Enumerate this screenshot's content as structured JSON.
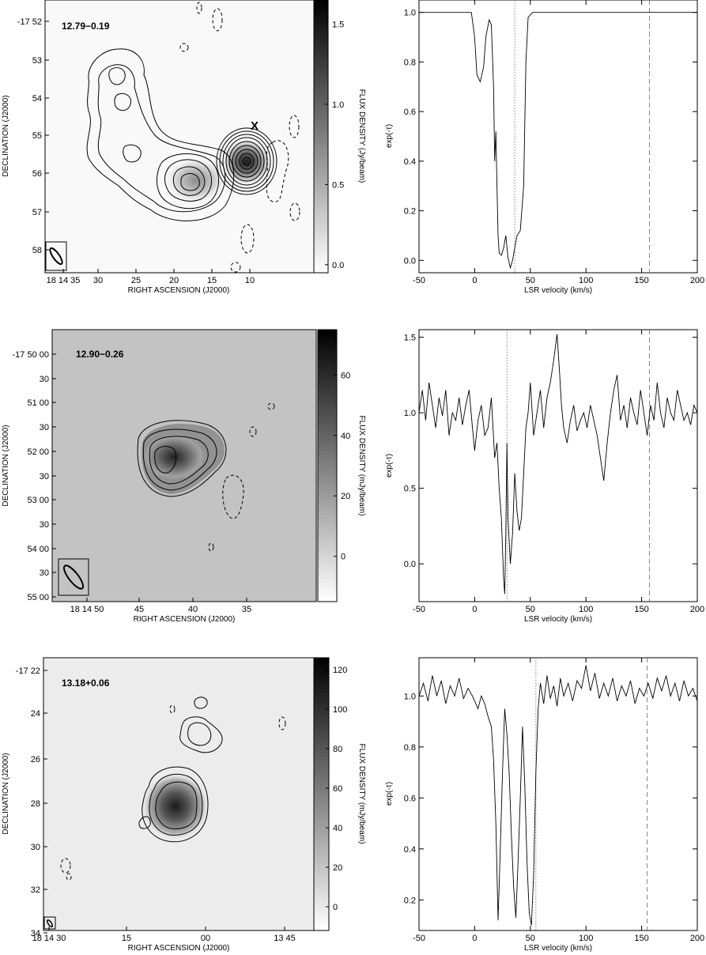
{
  "rows": [
    {
      "map": {
        "source": "12.79−0.19",
        "xlabel": "RIGHT ASCENSION (J2000)",
        "ylabel": "DECLINATION (J2000)",
        "cbar_label": "FLUX DENSITY (Jy/beam)",
        "cbar_ticks": [
          "1.5",
          "1.0",
          "0.5",
          "0.0"
        ],
        "cbar_ticks_num": [
          1.5,
          1.0,
          0.5,
          0.0
        ],
        "cbar_range": [
          -0.05,
          1.65
        ],
        "x_ticks": [
          "18 14 35",
          "30",
          "25",
          "20",
          "15",
          "10"
        ],
        "y_ticks": [
          "-17 52",
          "53",
          "54",
          "55",
          "56",
          "57",
          "58"
        ],
        "marker": "X"
      },
      "spectrum": {
        "type": "line",
        "xlabel": "LSR velocity (km/s)",
        "ylabel": "exp(-τ)",
        "x_ticks": [
          "-50",
          "0",
          "50",
          "100",
          "150",
          "200"
        ],
        "x_ticks_num": [
          -50,
          0,
          50,
          100,
          150,
          200
        ],
        "y_ticks": [
          "0.0",
          "0.2",
          "0.4",
          "0.6",
          "0.8",
          "1.0"
        ],
        "y_ticks_num": [
          0.0,
          0.2,
          0.4,
          0.6,
          0.8,
          1.0
        ],
        "xlim": [
          -50,
          200
        ],
        "ylim": [
          -0.05,
          1.05
        ],
        "dotted_line": 36,
        "dashed_line": 157,
        "points": [
          [
            -50,
            1.0
          ],
          [
            -40,
            1.0
          ],
          [
            -30,
            1.0
          ],
          [
            -20,
            1.0
          ],
          [
            -10,
            1.0
          ],
          [
            -3,
            1.0
          ],
          [
            0,
            0.9
          ],
          [
            2,
            0.75
          ],
          [
            5,
            0.72
          ],
          [
            8,
            0.78
          ],
          [
            10,
            0.9
          ],
          [
            13,
            0.97
          ],
          [
            15,
            0.95
          ],
          [
            17,
            0.7
          ],
          [
            18,
            0.4
          ],
          [
            19,
            0.52
          ],
          [
            20,
            0.3
          ],
          [
            21,
            0.1
          ],
          [
            22,
            0.03
          ],
          [
            24,
            0.02
          ],
          [
            26,
            0.05
          ],
          [
            28,
            0.1
          ],
          [
            30,
            0.01
          ],
          [
            32,
            -0.03
          ],
          [
            34,
            0.0
          ],
          [
            36,
            0.05
          ],
          [
            38,
            0.1
          ],
          [
            41,
            0.12
          ],
          [
            44,
            0.3
          ],
          [
            46,
            0.8
          ],
          [
            48,
            0.98
          ],
          [
            52,
            1.0
          ],
          [
            60,
            1.0
          ],
          [
            70,
            1.0
          ],
          [
            80,
            1.0
          ],
          [
            90,
            1.0
          ],
          [
            100,
            1.0
          ],
          [
            110,
            1.0
          ],
          [
            120,
            1.0
          ],
          [
            130,
            1.0
          ],
          [
            140,
            1.0
          ],
          [
            150,
            1.0
          ],
          [
            160,
            1.0
          ],
          [
            170,
            1.0
          ],
          [
            180,
            1.0
          ],
          [
            190,
            1.0
          ],
          [
            200,
            1.0
          ]
        ]
      }
    },
    {
      "map": {
        "source": "12.90−0.26",
        "xlabel": "RIGHT ASCENSION (J2000)",
        "ylabel": "DECLINATION (J2000)",
        "cbar_label": "FLUX DENSITY (mJy/beam)",
        "cbar_ticks": [
          "60",
          "40",
          "20",
          "0"
        ],
        "cbar_ticks_num": [
          60,
          40,
          20,
          0
        ],
        "cbar_range": [
          -15,
          75
        ],
        "x_ticks": [
          "18 14 50",
          "45",
          "40",
          "35"
        ],
        "y_ticks": [
          "-17 50 00",
          "30",
          "51 00",
          "30",
          "52 00",
          "30",
          "53 00",
          "30",
          "54 00",
          "30",
          "55 00"
        ]
      },
      "spectrum": {
        "type": "line",
        "xlabel": "LSR velocity (km/s)",
        "ylabel": "exp(-τ)",
        "x_ticks": [
          "-50",
          "0",
          "50",
          "100",
          "150",
          "200"
        ],
        "x_ticks_num": [
          -50,
          0,
          50,
          100,
          150,
          200
        ],
        "y_ticks": [
          "0.0",
          "0.5",
          "1.0",
          "1.5"
        ],
        "y_ticks_num": [
          0.0,
          0.5,
          1.0,
          1.5
        ],
        "xlim": [
          -50,
          200
        ],
        "ylim": [
          -0.25,
          1.55
        ],
        "dotted_line": 29,
        "dashed_line": 157,
        "points": [
          [
            -50,
            1.0
          ],
          [
            -47,
            1.15
          ],
          [
            -44,
            0.95
          ],
          [
            -41,
            1.2
          ],
          [
            -38,
            1.05
          ],
          [
            -35,
            0.9
          ],
          [
            -32,
            1.1
          ],
          [
            -29,
            0.98
          ],
          [
            -26,
            1.15
          ],
          [
            -23,
            0.85
          ],
          [
            -20,
            1.0
          ],
          [
            -17,
            0.95
          ],
          [
            -14,
            1.1
          ],
          [
            -11,
            0.92
          ],
          [
            -8,
            1.05
          ],
          [
            -5,
            1.15
          ],
          [
            -2,
            0.9
          ],
          [
            0,
            0.75
          ],
          [
            3,
            0.95
          ],
          [
            6,
            1.05
          ],
          [
            9,
            0.85
          ],
          [
            12,
            0.9
          ],
          [
            15,
            1.1
          ],
          [
            18,
            0.7
          ],
          [
            20,
            0.8
          ],
          [
            22,
            0.5
          ],
          [
            24,
            0.3
          ],
          [
            26,
            -0.1
          ],
          [
            27,
            -0.2
          ],
          [
            28,
            0.2
          ],
          [
            29,
            0.8
          ],
          [
            30,
            0.3
          ],
          [
            32,
            0.0
          ],
          [
            34,
            0.2
          ],
          [
            36,
            0.6
          ],
          [
            38,
            0.35
          ],
          [
            40,
            0.22
          ],
          [
            42,
            0.3
          ],
          [
            44,
            0.6
          ],
          [
            46,
            0.9
          ],
          [
            48,
            1.0
          ],
          [
            50,
            1.2
          ],
          [
            53,
            0.85
          ],
          [
            56,
            1.0
          ],
          [
            59,
            1.15
          ],
          [
            62,
            0.9
          ],
          [
            65,
            1.1
          ],
          [
            68,
            1.2
          ],
          [
            71,
            1.35
          ],
          [
            74,
            1.52
          ],
          [
            76,
            1.3
          ],
          [
            78,
            1.05
          ],
          [
            80,
            0.9
          ],
          [
            83,
            0.8
          ],
          [
            86,
            0.95
          ],
          [
            89,
            1.05
          ],
          [
            92,
            0.88
          ],
          [
            95,
            0.95
          ],
          [
            98,
            1.0
          ],
          [
            101,
            0.9
          ],
          [
            104,
            1.05
          ],
          [
            107,
            0.95
          ],
          [
            110,
            0.85
          ],
          [
            113,
            0.7
          ],
          [
            116,
            0.55
          ],
          [
            119,
            0.8
          ],
          [
            122,
            1.0
          ],
          [
            125,
            1.15
          ],
          [
            128,
            1.25
          ],
          [
            131,
            0.95
          ],
          [
            134,
            1.05
          ],
          [
            137,
            0.9
          ],
          [
            140,
            1.1
          ],
          [
            143,
            1.0
          ],
          [
            146,
            0.92
          ],
          [
            149,
            1.15
          ],
          [
            152,
            1.0
          ],
          [
            155,
            0.85
          ],
          [
            158,
            1.05
          ],
          [
            161,
            0.95
          ],
          [
            164,
            1.2
          ],
          [
            167,
            1.0
          ],
          [
            170,
            0.9
          ],
          [
            173,
            1.1
          ],
          [
            176,
            1.0
          ],
          [
            179,
            0.95
          ],
          [
            182,
            1.15
          ],
          [
            185,
            1.05
          ],
          [
            188,
            0.95
          ],
          [
            191,
            1.0
          ],
          [
            194,
            0.92
          ],
          [
            197,
            1.05
          ],
          [
            200,
            1.0
          ]
        ]
      }
    },
    {
      "map": {
        "source": "13.18+0.06",
        "xlabel": "RIGHT ASCENSION (J2000)",
        "ylabel": "DECLINATION (J2000)",
        "cbar_label": "FLUX DENSITY (mJy/beam)",
        "cbar_ticks": [
          "120",
          "100",
          "80",
          "60",
          "40",
          "20",
          "0"
        ],
        "cbar_ticks_num": [
          120,
          100,
          80,
          60,
          40,
          20,
          0
        ],
        "cbar_range": [
          -12,
          126
        ],
        "x_ticks": [
          "18 14 30",
          "15",
          "00",
          "13 45"
        ],
        "y_ticks": [
          "-17 22",
          "24",
          "26",
          "28",
          "30",
          "32",
          "34"
        ]
      },
      "spectrum": {
        "type": "line",
        "xlabel": "LSR velocity (km/s)",
        "ylabel": "exp(-τ)",
        "x_ticks": [
          "-50",
          "0",
          "50",
          "100",
          "150",
          "200"
        ],
        "x_ticks_num": [
          -50,
          0,
          50,
          100,
          150,
          200
        ],
        "y_ticks": [
          "0.2",
          "0.4",
          "0.6",
          "0.8",
          "1.0"
        ],
        "y_ticks_num": [
          0.2,
          0.4,
          0.6,
          0.8,
          1.0
        ],
        "xlim": [
          -50,
          200
        ],
        "ylim": [
          0.08,
          1.15
        ],
        "dotted_line": 55,
        "dashed_line": 155,
        "points": [
          [
            -50,
            1.0
          ],
          [
            -46,
            1.05
          ],
          [
            -42,
            0.98
          ],
          [
            -38,
            1.08
          ],
          [
            -34,
            1.0
          ],
          [
            -30,
            1.06
          ],
          [
            -26,
            0.97
          ],
          [
            -22,
            1.04
          ],
          [
            -18,
            1.0
          ],
          [
            -14,
            1.07
          ],
          [
            -10,
            0.99
          ],
          [
            -6,
            1.03
          ],
          [
            -2,
            1.0
          ],
          [
            0,
            0.98
          ],
          [
            3,
            0.95
          ],
          [
            6,
            1.0
          ],
          [
            9,
            0.97
          ],
          [
            12,
            0.92
          ],
          [
            15,
            0.88
          ],
          [
            17,
            0.75
          ],
          [
            19,
            0.5
          ],
          [
            21,
            0.12
          ],
          [
            23,
            0.4
          ],
          [
            25,
            0.7
          ],
          [
            27,
            0.95
          ],
          [
            29,
            0.85
          ],
          [
            31,
            0.7
          ],
          [
            33,
            0.45
          ],
          [
            35,
            0.25
          ],
          [
            37,
            0.13
          ],
          [
            39,
            0.35
          ],
          [
            41,
            0.6
          ],
          [
            43,
            0.88
          ],
          [
            45,
            0.65
          ],
          [
            47,
            0.35
          ],
          [
            49,
            0.15
          ],
          [
            51,
            0.1
          ],
          [
            53,
            0.3
          ],
          [
            55,
            0.7
          ],
          [
            57,
            0.95
          ],
          [
            59,
            1.05
          ],
          [
            62,
            0.97
          ],
          [
            65,
            1.08
          ],
          [
            68,
            0.99
          ],
          [
            71,
            1.04
          ],
          [
            74,
            0.96
          ],
          [
            77,
            1.07
          ],
          [
            80,
            1.0
          ],
          [
            84,
            1.05
          ],
          [
            88,
            0.98
          ],
          [
            92,
            1.06
          ],
          [
            96,
            1.03
          ],
          [
            100,
            1.12
          ],
          [
            104,
            1.02
          ],
          [
            108,
            1.09
          ],
          [
            112,
            0.99
          ],
          [
            116,
            1.05
          ],
          [
            120,
            1.0
          ],
          [
            124,
            1.07
          ],
          [
            128,
            0.98
          ],
          [
            132,
            1.04
          ],
          [
            136,
            1.0
          ],
          [
            140,
            1.06
          ],
          [
            144,
            0.97
          ],
          [
            148,
            1.03
          ],
          [
            152,
            1.0
          ],
          [
            156,
            1.05
          ],
          [
            160,
            0.99
          ],
          [
            164,
            1.07
          ],
          [
            168,
            1.02
          ],
          [
            172,
            1.08
          ],
          [
            176,
            1.0
          ],
          [
            180,
            1.05
          ],
          [
            184,
            0.98
          ],
          [
            188,
            1.06
          ],
          [
            192,
            1.0
          ],
          [
            196,
            1.03
          ],
          [
            200,
            0.98
          ]
        ]
      }
    }
  ]
}
